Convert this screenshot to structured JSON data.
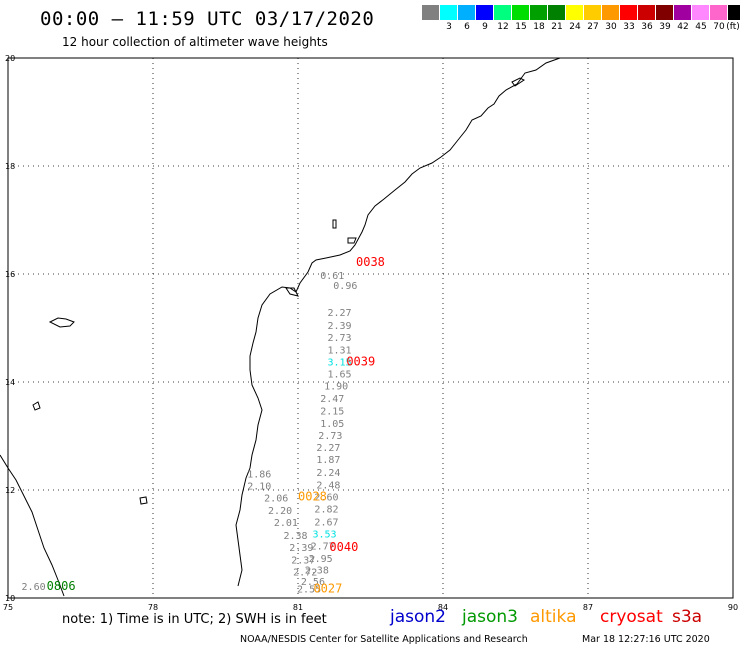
{
  "header": {
    "title": "00:00 – 11:59 UTC 03/17/2020",
    "subtitle": "12 hour collection of altimeter wave heights"
  },
  "colorbar": {
    "swatches": [
      {
        "color": "#808080",
        "label": ""
      },
      {
        "color": "#00ffff",
        "label": "3"
      },
      {
        "color": "#00b0ff",
        "label": "6"
      },
      {
        "color": "#0000ff",
        "label": "9"
      },
      {
        "color": "#00ff7f",
        "label": "12"
      },
      {
        "color": "#00dd00",
        "label": "15"
      },
      {
        "color": "#00a000",
        "label": "18"
      },
      {
        "color": "#008000",
        "label": "21"
      },
      {
        "color": "#ffff00",
        "label": "24"
      },
      {
        "color": "#ffcc00",
        "label": "27"
      },
      {
        "color": "#ff9900",
        "label": "30"
      },
      {
        "color": "#ff0000",
        "label": "33"
      },
      {
        "color": "#cc0000",
        "label": "36"
      },
      {
        "color": "#800000",
        "label": "39"
      },
      {
        "color": "#a000a0",
        "label": "42"
      },
      {
        "color": "#ff88ff",
        "label": "45"
      },
      {
        "color": "#ff66cc",
        "label": "70"
      },
      {
        "color": "#000000",
        "label": "(ft)"
      }
    ]
  },
  "axes": {
    "lon_ticks": [
      "75",
      "78",
      "81",
      "84",
      "87",
      "90"
    ],
    "lat_ticks": [
      "10",
      "12",
      "14",
      "16",
      "18",
      "20"
    ]
  },
  "observations": [
    {
      "swh": "0.61",
      "lon": 81.46,
      "lat": 15.91,
      "color": "#808080"
    },
    {
      "swh": "0.96",
      "lon": 81.73,
      "lat": 15.72,
      "color": "#808080"
    },
    {
      "swh": "2.27",
      "lon": 81.61,
      "lat": 15.22,
      "color": "#808080"
    },
    {
      "swh": "2.39",
      "lon": 81.61,
      "lat": 14.98,
      "color": "#808080"
    },
    {
      "swh": "2.73",
      "lon": 81.61,
      "lat": 14.76,
      "color": "#808080"
    },
    {
      "swh": "1.31",
      "lon": 81.61,
      "lat": 14.53,
      "color": "#808080"
    },
    {
      "swh": "3.15",
      "lon": 81.61,
      "lat": 14.31,
      "color": "#00e0e0"
    },
    {
      "swh": "1.65",
      "lon": 81.61,
      "lat": 14.08,
      "color": "#808080"
    },
    {
      "swh": "1.90",
      "lon": 81.54,
      "lat": 13.86,
      "color": "#808080"
    },
    {
      "swh": "2.47",
      "lon": 81.46,
      "lat": 13.63,
      "color": "#808080"
    },
    {
      "swh": "2.15",
      "lon": 81.46,
      "lat": 13.4,
      "color": "#808080"
    },
    {
      "swh": "1.05",
      "lon": 81.46,
      "lat": 13.17,
      "color": "#808080"
    },
    {
      "swh": "2.73",
      "lon": 81.42,
      "lat": 12.94,
      "color": "#808080"
    },
    {
      "swh": "2.27",
      "lon": 81.38,
      "lat": 12.72,
      "color": "#808080"
    },
    {
      "swh": "1.87",
      "lon": 81.38,
      "lat": 12.5,
      "color": "#808080"
    },
    {
      "swh": "2.24",
      "lon": 81.38,
      "lat": 12.26,
      "color": "#808080"
    },
    {
      "swh": "2.48",
      "lon": 81.38,
      "lat": 12.03,
      "color": "#808080"
    },
    {
      "swh": "2.60",
      "lon": 81.34,
      "lat": 11.81,
      "color": "#808080"
    },
    {
      "swh": "1.86",
      "lon": 79.95,
      "lat": 12.23,
      "color": "#808080"
    },
    {
      "swh": "2.10",
      "lon": 79.95,
      "lat": 12.01,
      "color": "#808080"
    },
    {
      "swh": "2.06",
      "lon": 80.3,
      "lat": 11.79,
      "color": "#808080"
    },
    {
      "swh": "2.82",
      "lon": 81.34,
      "lat": 11.58,
      "color": "#808080"
    },
    {
      "swh": "2.20",
      "lon": 80.38,
      "lat": 11.56,
      "color": "#808080"
    },
    {
      "swh": "2.67",
      "lon": 81.34,
      "lat": 11.34,
      "color": "#808080"
    },
    {
      "swh": "2.01",
      "lon": 80.5,
      "lat": 11.33,
      "color": "#808080"
    },
    {
      "swh": "3.53",
      "lon": 81.3,
      "lat": 11.12,
      "color": "#00e0e0"
    },
    {
      "swh": "2.38",
      "lon": 80.7,
      "lat": 11.09,
      "color": "#808080"
    },
    {
      "swh": "2.77",
      "lon": 81.26,
      "lat": 10.9,
      "color": "#808080"
    },
    {
      "swh": "2.39",
      "lon": 80.82,
      "lat": 10.87,
      "color": "#808080"
    },
    {
      "swh": "2.95",
      "lon": 81.22,
      "lat": 10.67,
      "color": "#808080"
    },
    {
      "swh": "2.37",
      "lon": 80.86,
      "lat": 10.64,
      "color": "#808080"
    },
    {
      "swh": "2.38",
      "lon": 81.14,
      "lat": 10.45,
      "color": "#808080"
    },
    {
      "swh": "2.72",
      "lon": 80.9,
      "lat": 10.42,
      "color": "#808080"
    },
    {
      "swh": "2.56",
      "lon": 81.06,
      "lat": 10.24,
      "color": "#808080"
    },
    {
      "swh": "2.55",
      "lon": 80.98,
      "lat": 10.1,
      "color": "#808080"
    },
    {
      "swh": "2.60",
      "lon": 75.28,
      "lat": 10.15,
      "color": "#808080"
    }
  ],
  "time_tags": [
    {
      "text": "0038",
      "lon": 82.2,
      "lat": 16.15,
      "color": "#ff0000"
    },
    {
      "text": "0039",
      "lon": 82.0,
      "lat": 14.31,
      "color": "#ff0000"
    },
    {
      "text": "0028",
      "lon": 81.0,
      "lat": 11.81,
      "color": "#ff9900"
    },
    {
      "text": "0040",
      "lon": 81.65,
      "lat": 10.87,
      "color": "#ff0000"
    },
    {
      "text": "0027",
      "lon": 81.32,
      "lat": 10.1,
      "color": "#ff9900"
    },
    {
      "text": "0806",
      "lon": 75.8,
      "lat": 10.15,
      "color": "#008000"
    }
  ],
  "notes": {
    "note": "note: 1) Time is in UTC; 2) SWH is in feet",
    "footer": "NOAA/NESDIS Center for Satellite Applications and Research",
    "timestamp": "Mar 18 12:27:16 UTC 2020"
  },
  "satellites": [
    {
      "name": "jason2",
      "color": "#0000cc"
    },
    {
      "name": "jason3",
      "color": "#009900"
    },
    {
      "name": "altika",
      "color": "#ff9900"
    },
    {
      "name": "cryosat",
      "color": "#ff0000"
    },
    {
      "name": "s3a",
      "color": "#cc0000"
    }
  ]
}
